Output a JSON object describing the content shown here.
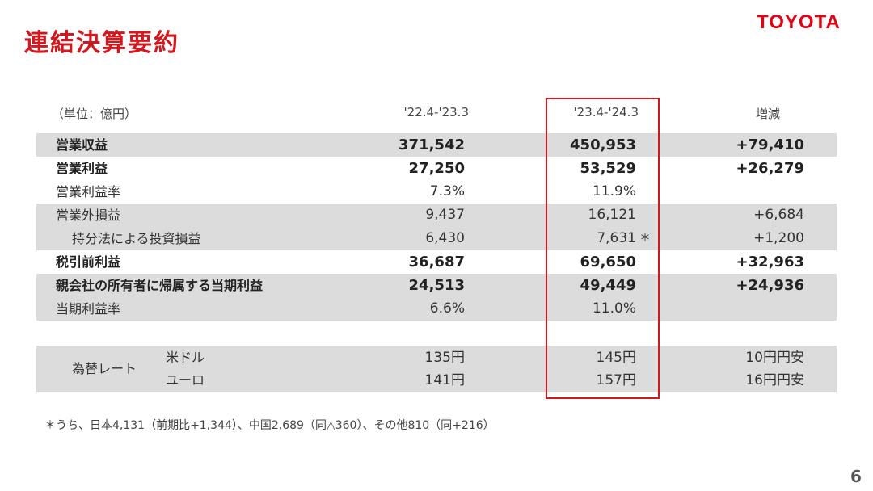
{
  "title": "連結決算要約",
  "logo_text": "TOYOTA",
  "page_number": "6",
  "header": {
    "unit": "（単位：億円）",
    "period1": "'22.4-'23.3",
    "period2": "'23.4-'24.3",
    "diff": "増減"
  },
  "rows": [
    {
      "label": "営業収益",
      "v1": "371,542",
      "v2": "450,953",
      "mark": "",
      "diff": "+79,410"
    },
    {
      "label": "営業利益",
      "v1": "27,250",
      "v2": "53,529",
      "mark": "",
      "diff": "+26,279"
    },
    {
      "label": "営業利益率",
      "v1": "7.3%",
      "v2": "11.9%",
      "mark": "",
      "diff": ""
    },
    {
      "label": "営業外損益",
      "v1": "9,437",
      "v2": "16,121",
      "mark": "",
      "diff": "+6,684"
    },
    {
      "label": "持分法による投資損益",
      "v1": "6,430",
      "v2": "7,631",
      "mark": "＊",
      "diff": "+1,200"
    },
    {
      "label": "税引前利益",
      "v1": "36,687",
      "v2": "69,650",
      "mark": "",
      "diff": "+32,963"
    },
    {
      "label": "親会社の所有者に帰属する当期利益",
      "v1": "24,513",
      "v2": "49,449",
      "mark": "",
      "diff": "+24,936"
    },
    {
      "label": "当期利益率",
      "v1": "6.6%",
      "v2": "11.0%",
      "mark": "",
      "diff": ""
    }
  ],
  "fx": {
    "label": "為替レート",
    "items": [
      {
        "currency": "米ドル",
        "v1": "135円",
        "v2": "145円",
        "diff": "10円円安"
      },
      {
        "currency": "ユーロ",
        "v1": "141円",
        "v2": "157円",
        "diff": "16円円安"
      }
    ]
  },
  "footnote": "＊うち、日本4,131（前期比+1,344）、中国2,689（同△360）、その他810（同+216）"
}
